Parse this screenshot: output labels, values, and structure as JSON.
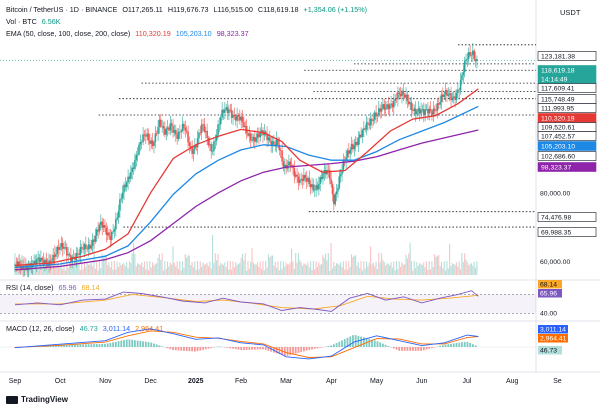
{
  "header": {
    "symbol": "Bitcoin / TetherUS · 1D · BINANCE",
    "open": "O117,265.11",
    "high": "H119,676.73",
    "low": "L116,515.00",
    "close": "C118,619.18",
    "change": "+1,354.06 (+1.15%)",
    "vol_label": "Vol · BTC",
    "vol_value": "6.56K",
    "ema_label": "EMA (50, close, 100, close, 200, close)",
    "ema50_value": "110,320.19",
    "ema100_value": "105,203.10",
    "ema200_value": "98,323.37",
    "currency": "USDT"
  },
  "rsi": {
    "label": "RSI (14, close)",
    "value": "65.96",
    "ma_value": "68.14"
  },
  "macd": {
    "label": "MACD (12, 26, close)",
    "hist": "46.73",
    "macd": "3,011.14",
    "signal": "2,964.41"
  },
  "brand": "TradingView",
  "colors": {
    "up": "#26a69a",
    "down": "#ef5350",
    "ema50": "#e53935",
    "ema100": "#1e88e5",
    "ema200": "#8e24aa",
    "rsi": "#7e57c2",
    "macd": "#2962ff",
    "signal": "#ff6d00"
  },
  "chart_data": [
    {
      "type": "candlestick",
      "title": "Bitcoin / TetherUS · 1D · BINANCE",
      "x_tick_labels": [
        "Sep",
        "Oct",
        "Nov",
        "Dec",
        "2025",
        "Feb",
        "Mar",
        "Apr",
        "May",
        "Jun",
        "Jul",
        "Aug",
        "Se"
      ],
      "y_tick_labels": [
        "120,000.00",
        "80,000.00",
        "60,000.00"
      ],
      "ylim": [
        56000,
        124000
      ],
      "last_price": 118619.18,
      "price_labels": [
        {
          "text": "123,181.38",
          "value": 123181.38,
          "style": "outline"
        },
        {
          "text": "118,619.18",
          "value": 118619.18,
          "style": "last"
        },
        {
          "text": "14:14:49",
          "value": 117300,
          "style": "timer"
        },
        {
          "text": "117,609.41",
          "value": 117609.41,
          "style": "outline"
        },
        {
          "text": "115,748.49",
          "value": 115748.49,
          "style": "outline"
        },
        {
          "text": "111,993.95",
          "value": 111993.95,
          "style": "outline"
        },
        {
          "text": "110,320.19",
          "value": 110320.19,
          "style": "ema50"
        },
        {
          "text": "109,520.61",
          "value": 109520.61,
          "style": "outline"
        },
        {
          "text": "107,452.57",
          "value": 107452.57,
          "style": "outline"
        },
        {
          "text": "105,203.10",
          "value": 105203.1,
          "style": "ema100"
        },
        {
          "text": "102,686.60",
          "value": 102686.6,
          "style": "outline"
        },
        {
          "text": "98,323.37",
          "value": 98323.37,
          "style": "ema200"
        },
        {
          "text": "74,476.98",
          "value": 74476.98,
          "style": "outline"
        },
        {
          "text": "69,988.35",
          "value": 69988.35,
          "style": "outline"
        }
      ],
      "price_lines": [
        {
          "value": 123181.38,
          "from_month": 9.8
        },
        {
          "value": 117609.41,
          "from_month": 7.5
        },
        {
          "value": 115748.49,
          "from_month": 6.4
        },
        {
          "value": 111993.95,
          "from_month": 2.8
        },
        {
          "value": 109520.61,
          "from_month": 6.6
        },
        {
          "value": 107452.57,
          "from_month": 2.3
        },
        {
          "value": 102686.6,
          "from_month": 1.85
        },
        {
          "value": 74476.98,
          "from_month": 6.5
        },
        {
          "value": 69988.35,
          "from_month": 2.4
        }
      ],
      "price_path": [
        [
          0,
          59000
        ],
        [
          0.15,
          56500
        ],
        [
          0.35,
          60500
        ],
        [
          0.6,
          58800
        ],
        [
          0.85,
          62000
        ],
        [
          1.1,
          63500
        ],
        [
          1.4,
          61000
        ],
        [
          1.7,
          66500
        ],
        [
          1.9,
          69500
        ],
        [
          2.1,
          68200
        ],
        [
          2.25,
          72000
        ],
        [
          2.4,
          80000
        ],
        [
          2.55,
          87000
        ],
        [
          2.75,
          92500
        ],
        [
          2.9,
          97000
        ],
        [
          3.05,
          95500
        ],
        [
          3.2,
          99500
        ],
        [
          3.3,
          96500
        ],
        [
          3.45,
          101500
        ],
        [
          3.6,
          95800
        ],
        [
          3.75,
          98500
        ],
        [
          3.9,
          93500
        ],
        [
          4.0,
          94200
        ],
        [
          4.15,
          98500
        ],
        [
          4.35,
          93500
        ],
        [
          4.6,
          102500
        ],
        [
          4.75,
          105000
        ],
        [
          4.95,
          101500
        ],
        [
          5.1,
          97500
        ],
        [
          5.3,
          96800
        ],
        [
          5.55,
          96000
        ],
        [
          5.8,
          95500
        ],
        [
          5.95,
          85500
        ],
        [
          6.1,
          90000
        ],
        [
          6.3,
          82500
        ],
        [
          6.5,
          83500
        ],
        [
          6.7,
          82000
        ],
        [
          6.95,
          86500
        ],
        [
          7.05,
          78800
        ],
        [
          7.2,
          84500
        ],
        [
          7.45,
          94800
        ],
        [
          7.7,
          96500
        ],
        [
          7.95,
          104000
        ],
        [
          8.2,
          103500
        ],
        [
          8.45,
          109500
        ],
        [
          8.65,
          106500
        ],
        [
          8.9,
          104800
        ],
        [
          9.05,
          102000
        ],
        [
          9.3,
          105800
        ],
        [
          9.5,
          107500
        ],
        [
          9.7,
          108800
        ],
        [
          9.85,
          111500
        ],
        [
          10.0,
          118500
        ],
        [
          10.12,
          122000
        ],
        [
          10.25,
          118600
        ]
      ],
      "ema50": [
        [
          0,
          58800
        ],
        [
          0.8,
          59500
        ],
        [
          1.5,
          61500
        ],
        [
          2.0,
          63500
        ],
        [
          2.5,
          68000
        ],
        [
          3.0,
          80000
        ],
        [
          3.5,
          90000
        ],
        [
          4.0,
          94000
        ],
        [
          4.5,
          96500
        ],
        [
          5.0,
          98500
        ],
        [
          5.5,
          97500
        ],
        [
          5.9,
          95000
        ],
        [
          6.3,
          89500
        ],
        [
          6.8,
          86000
        ],
        [
          7.3,
          86500
        ],
        [
          7.8,
          92000
        ],
        [
          8.3,
          98000
        ],
        [
          8.8,
          101500
        ],
        [
          9.3,
          102500
        ],
        [
          9.8,
          106000
        ],
        [
          10.25,
          110320
        ]
      ],
      "ema100": [
        [
          0,
          58200
        ],
        [
          1.0,
          59200
        ],
        [
          2.0,
          61500
        ],
        [
          2.5,
          64500
        ],
        [
          3.0,
          71500
        ],
        [
          3.5,
          79500
        ],
        [
          4.0,
          85500
        ],
        [
          4.5,
          89500
        ],
        [
          5.0,
          92500
        ],
        [
          5.5,
          94000
        ],
        [
          6.0,
          93500
        ],
        [
          6.5,
          91000
        ],
        [
          7.0,
          89500
        ],
        [
          7.5,
          89500
        ],
        [
          8.0,
          92000
        ],
        [
          8.5,
          95500
        ],
        [
          9.0,
          98000
        ],
        [
          9.5,
          100500
        ],
        [
          10.25,
          105203
        ]
      ],
      "ema200": [
        [
          0,
          57500
        ],
        [
          1.0,
          58500
        ],
        [
          2.0,
          60500
        ],
        [
          2.5,
          62500
        ],
        [
          3.0,
          66000
        ],
        [
          3.5,
          71000
        ],
        [
          4.0,
          76000
        ],
        [
          4.5,
          80000
        ],
        [
          5.0,
          83500
        ],
        [
          5.5,
          86000
        ],
        [
          6.0,
          87500
        ],
        [
          6.5,
          88000
        ],
        [
          7.0,
          88500
        ],
        [
          7.5,
          89200
        ],
        [
          8.0,
          90500
        ],
        [
          8.5,
          92500
        ],
        [
          9.0,
          94500
        ],
        [
          9.5,
          96000
        ],
        [
          10.25,
          98323
        ]
      ]
    },
    {
      "type": "line",
      "title": "RSI (14, close)",
      "y_tick_labels": [
        "40.00"
      ],
      "ylim": [
        20,
        90
      ],
      "bands": [
        30,
        70
      ],
      "rsi": [
        [
          0,
          48
        ],
        [
          0.5,
          52
        ],
        [
          1.0,
          48
        ],
        [
          1.5,
          58
        ],
        [
          2.0,
          60
        ],
        [
          2.4,
          75
        ],
        [
          2.8,
          72
        ],
        [
          3.3,
          64
        ],
        [
          3.7,
          56
        ],
        [
          4.2,
          52
        ],
        [
          4.6,
          62
        ],
        [
          5.0,
          54
        ],
        [
          5.5,
          50
        ],
        [
          5.9,
          36
        ],
        [
          6.3,
          42
        ],
        [
          6.7,
          38
        ],
        [
          7.0,
          34
        ],
        [
          7.4,
          62
        ],
        [
          7.8,
          72
        ],
        [
          8.2,
          58
        ],
        [
          8.6,
          65
        ],
        [
          9.0,
          52
        ],
        [
          9.4,
          62
        ],
        [
          9.8,
          70
        ],
        [
          10.1,
          78
        ],
        [
          10.25,
          65.96
        ]
      ],
      "rsi_ma": [
        [
          0,
          50
        ],
        [
          1.0,
          50
        ],
        [
          2.0,
          58
        ],
        [
          2.6,
          70
        ],
        [
          3.3,
          63
        ],
        [
          4.0,
          55
        ],
        [
          4.6,
          58
        ],
        [
          5.2,
          52
        ],
        [
          5.9,
          42
        ],
        [
          6.6,
          39
        ],
        [
          7.2,
          46
        ],
        [
          7.8,
          66
        ],
        [
          8.4,
          60
        ],
        [
          9.0,
          58
        ],
        [
          9.6,
          62
        ],
        [
          10.25,
          68.14
        ]
      ]
    },
    {
      "type": "line",
      "title": "MACD (12, 26, close)",
      "ylim": [
        -6000,
        6000
      ],
      "macd": [
        [
          0,
          -200
        ],
        [
          1.0,
          800
        ],
        [
          2.0,
          1800
        ],
        [
          2.5,
          4200
        ],
        [
          3.0,
          5200
        ],
        [
          3.5,
          3800
        ],
        [
          4.0,
          2200
        ],
        [
          4.5,
          2600
        ],
        [
          5.0,
          1200
        ],
        [
          5.5,
          600
        ],
        [
          6.0,
          -2800
        ],
        [
          6.5,
          -3400
        ],
        [
          7.0,
          -2600
        ],
        [
          7.5,
          1400
        ],
        [
          8.0,
          3200
        ],
        [
          8.5,
          1800
        ],
        [
          9.0,
          400
        ],
        [
          9.5,
          1200
        ],
        [
          10.0,
          3400
        ],
        [
          10.25,
          3011.14
        ]
      ],
      "signal": [
        [
          0,
          -100
        ],
        [
          1.0,
          500
        ],
        [
          2.0,
          1400
        ],
        [
          2.5,
          3200
        ],
        [
          3.0,
          4600
        ],
        [
          3.5,
          4200
        ],
        [
          4.0,
          2800
        ],
        [
          4.5,
          2500
        ],
        [
          5.0,
          1600
        ],
        [
          5.5,
          900
        ],
        [
          6.0,
          -1600
        ],
        [
          6.5,
          -3000
        ],
        [
          7.0,
          -2800
        ],
        [
          7.5,
          -200
        ],
        [
          8.0,
          2400
        ],
        [
          8.5,
          2300
        ],
        [
          9.0,
          900
        ],
        [
          9.5,
          900
        ],
        [
          10.0,
          2700
        ],
        [
          10.25,
          2964.41
        ]
      ],
      "histogram_last": 46.73
    }
  ]
}
